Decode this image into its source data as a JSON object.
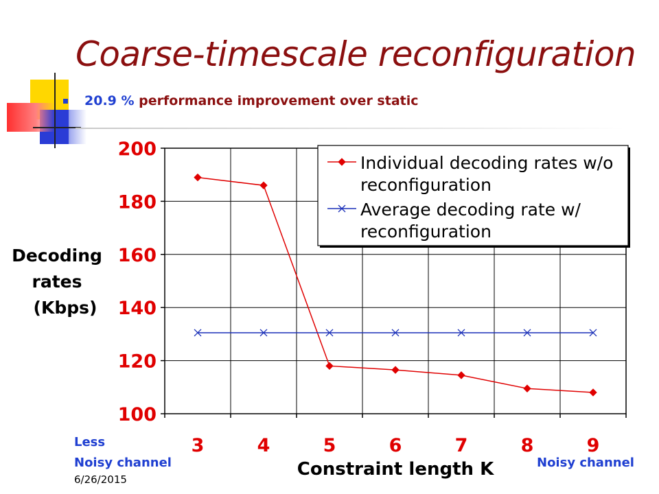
{
  "slide": {
    "title": "Coarse-timescale reconfiguration",
    "bullet_pct": "20.9 %",
    "bullet_text": " performance improvement over  static",
    "footer_left_top": "Less",
    "footer_left_bottom": "Noisy channel",
    "footer_right": "Noisy channel",
    "date": "6/26/2015"
  },
  "colors": {
    "title": "#8b0f0f",
    "accent_blue": "#1f3fd1",
    "red_series": "#e00000",
    "blue_series": "#1a2fb8",
    "axis_ticks": "#e00000"
  },
  "chart_data": {
    "type": "line",
    "xlabel": "Constraint length K",
    "ylabel_lines": [
      "Decoding",
      "rates",
      "(Kbps)"
    ],
    "categories": [
      "3",
      "4",
      "5",
      "6",
      "7",
      "8",
      "9"
    ],
    "ylim": [
      100,
      200
    ],
    "yticks": [
      100,
      120,
      140,
      160,
      180,
      200
    ],
    "grid": true,
    "legend_position": "top-right",
    "series": [
      {
        "name": "Individual decoding rates w/o reconfiguration",
        "legend_lines": [
          "Individual decoding rates w/o",
          "reconfiguration"
        ],
        "marker": "diamond",
        "color": "#e00000",
        "values": [
          189,
          186,
          118,
          116.5,
          114.5,
          109.5,
          108
        ]
      },
      {
        "name": "Average decoding rate w/ reconfiguration",
        "legend_lines": [
          "Average decoding rate w/",
          "reconfiguration"
        ],
        "marker": "x",
        "color": "#1a2fb8",
        "values": [
          130.5,
          130.5,
          130.5,
          130.5,
          130.5,
          130.5,
          130.5
        ]
      }
    ]
  }
}
